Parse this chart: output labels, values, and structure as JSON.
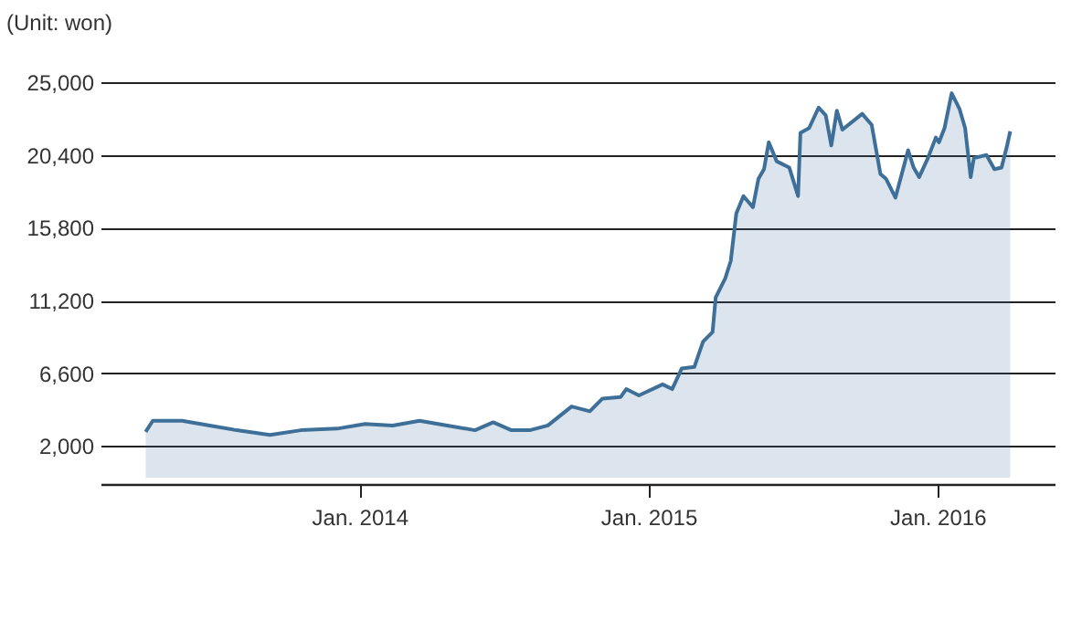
{
  "chart_data": {
    "type": "area",
    "ylabel": "(Unit: won)",
    "x": [
      "2013-04-06",
      "2013-04-15",
      "2013-05-22",
      "2013-06-26",
      "2013-07-30",
      "2013-09-10",
      "2013-10-19",
      "2013-12-04",
      "2014-01-08",
      "2014-02-12",
      "2014-03-18",
      "2014-04-22",
      "2014-05-27",
      "2014-06-19",
      "2014-07-12",
      "2014-08-04",
      "2014-08-27",
      "2014-09-26",
      "2014-10-19",
      "2014-11-04",
      "2014-11-27",
      "2014-12-04",
      "2014-12-20",
      "2015-01-19",
      "2015-01-31",
      "2015-02-12",
      "2015-02-28",
      "2015-03-11",
      "2015-03-23",
      "2015-03-27",
      "2015-04-08",
      "2015-04-15",
      "2015-04-22",
      "2015-05-01",
      "2015-05-13",
      "2015-05-20",
      "2015-05-27",
      "2015-06-02",
      "2015-06-12",
      "2015-06-28",
      "2015-07-09",
      "2015-07-12",
      "2015-07-23",
      "2015-08-04",
      "2015-08-13",
      "2015-08-20",
      "2015-08-27",
      "2015-09-03",
      "2015-09-28",
      "2015-10-10",
      "2015-10-21",
      "2015-10-28",
      "2015-11-09",
      "2015-11-25",
      "2015-12-02",
      "2015-12-09",
      "2015-12-20",
      "2015-12-30",
      "2016-01-03",
      "2016-01-10",
      "2016-01-19",
      "2016-01-29",
      "2016-02-05",
      "2016-02-12",
      "2016-02-16",
      "2016-03-03",
      "2016-03-13",
      "2016-03-22",
      "2016-03-29",
      "2016-04-02"
    ],
    "series": [
      {
        "color": "#3d6f99",
        "values": [
          2900,
          3600,
          3600,
          3300,
          3000,
          2700,
          3000,
          3100,
          3400,
          3300,
          3600,
          3300,
          3000,
          3500,
          3000,
          3000,
          3300,
          4500,
          4200,
          5000,
          5100,
          5600,
          5200,
          5900,
          5600,
          6900,
          7000,
          8600,
          9200,
          11400,
          12600,
          13700,
          16700,
          17800,
          17100,
          18900,
          19500,
          21200,
          20000,
          19600,
          17800,
          21800,
          22100,
          23400,
          22900,
          21000,
          23200,
          22000,
          23000,
          22300,
          19200,
          18900,
          17700,
          20700,
          19600,
          19000,
          20200,
          21500,
          21200,
          22100,
          24300,
          23300,
          22100,
          19000,
          20200,
          20400,
          19500,
          19600,
          21000,
          21900
        ]
      }
    ],
    "xlim": [
      "2013-02-08",
      "2016-05-28"
    ],
    "xticks": [
      {
        "value": "2014-01-01",
        "label": "Jan. 2014"
      },
      {
        "value": "2015-01-01",
        "label": "Jan. 2015"
      },
      {
        "value": "2016-01-01",
        "label": "Jan. 2016"
      }
    ],
    "ylim": [
      -400,
      25000
    ],
    "yticks": [
      {
        "value": 2000,
        "label": "2,000"
      },
      {
        "value": 6600,
        "label": "6,600"
      },
      {
        "value": 11200,
        "label": "11,200"
      },
      {
        "value": 15800,
        "label": "15,800"
      },
      {
        "value": 20400,
        "label": "20,400"
      },
      {
        "value": 25000,
        "label": "25,000"
      }
    ],
    "grid": "y"
  }
}
